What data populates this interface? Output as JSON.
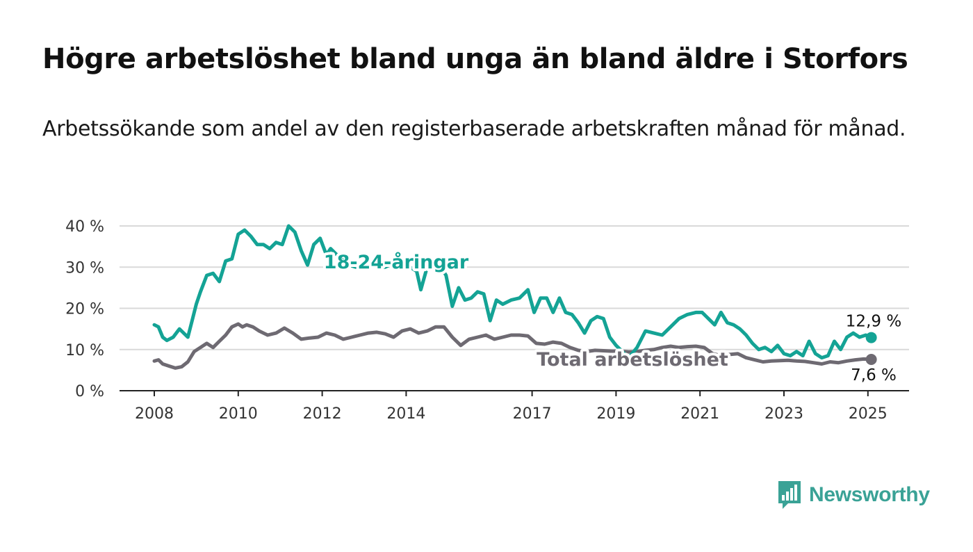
{
  "title": "Högre arbetslöshet bland unga än bland äldre i Storfors",
  "subtitle": "Arbetssökande som andel av den registerbaserade arbetskraften månad för månad.",
  "brand": {
    "name": "Newsworthy",
    "color": "#3aa296",
    "icon": "bar-chart-icon"
  },
  "chart_data": {
    "type": "line",
    "xlabel": "",
    "ylabel": "",
    "xlim": [
      2008,
      2025.15
    ],
    "ylim": [
      0,
      40
    ],
    "y_ticks": [
      0,
      10,
      20,
      30,
      40
    ],
    "y_tick_labels": [
      "0 %",
      "10 %",
      "20 %",
      "30 %",
      "40 %"
    ],
    "x_ticks": [
      2008,
      2010,
      2012,
      2014,
      2017,
      2019,
      2021,
      2023,
      2025
    ],
    "x_tick_labels": [
      "2008",
      "2010",
      "2012",
      "2014",
      "2017",
      "2019",
      "2021",
      "2023",
      "2025"
    ],
    "grid": "horizontal",
    "legend": "inline labels",
    "series": [
      {
        "name": "18-24-åringar",
        "color": "#14a395",
        "end_label": "12,9 %",
        "end_value": 12.9,
        "x": [
          2008.0,
          2008.1,
          2008.2,
          2008.3,
          2008.45,
          2008.6,
          2008.8,
          2008.9,
          2009.0,
          2009.1,
          2009.25,
          2009.4,
          2009.55,
          2009.7,
          2009.85,
          2010.0,
          2010.15,
          2010.3,
          2010.45,
          2010.6,
          2010.75,
          2010.9,
          2011.05,
          2011.2,
          2011.35,
          2011.5,
          2011.65,
          2011.8,
          2011.95,
          2012.1,
          2012.2,
          2012.35,
          2012.5,
          2012.65,
          2012.8,
          2012.95,
          2013.1,
          2013.3,
          2013.5,
          2013.7,
          2013.9,
          2014.1,
          2014.25,
          2014.35,
          2014.5,
          2014.65,
          2014.8,
          2014.95,
          2015.1,
          2015.25,
          2015.4,
          2015.55,
          2015.7,
          2015.85,
          2016.0,
          2016.15,
          2016.3,
          2016.5,
          2016.7,
          2016.9,
          2017.05,
          2017.2,
          2017.35,
          2017.5,
          2017.65,
          2017.8,
          2017.95,
          2018.1,
          2018.25,
          2018.4,
          2018.55,
          2018.7,
          2018.85,
          2019.0,
          2019.15,
          2019.3,
          2019.5,
          2019.7,
          2019.9,
          2020.1,
          2020.3,
          2020.5,
          2020.7,
          2020.9,
          2021.05,
          2021.2,
          2021.35,
          2021.5,
          2021.65,
          2021.8,
          2021.95,
          2022.1,
          2022.25,
          2022.4,
          2022.55,
          2022.7,
          2022.85,
          2023.0,
          2023.15,
          2023.3,
          2023.45,
          2023.6,
          2023.75,
          2023.9,
          2024.05,
          2024.2,
          2024.35,
          2024.5,
          2024.65,
          2024.8,
          2024.95,
          2025.08
        ],
        "values": [
          16,
          15.5,
          13,
          12.2,
          13,
          15,
          13,
          17,
          21,
          24,
          28,
          28.5,
          26.5,
          31.5,
          32,
          38,
          39,
          37.5,
          35.5,
          35.5,
          34.5,
          36,
          35.5,
          40,
          38.5,
          34,
          30.5,
          35.5,
          37,
          33,
          34.5,
          33,
          31.5,
          30.5,
          30,
          30.5,
          31,
          30,
          30,
          31,
          30.5,
          30,
          29,
          24.5,
          30,
          29.5,
          30.5,
          28,
          20.5,
          25,
          22,
          22.5,
          24,
          23.5,
          17,
          22,
          21,
          22,
          22.5,
          24.5,
          19,
          22.5,
          22.5,
          19,
          22.5,
          19,
          18.5,
          16.5,
          14,
          17,
          18,
          17.5,
          13,
          11,
          9.5,
          8,
          10.5,
          14.5,
          14,
          13.5,
          15.5,
          17.5,
          18.5,
          19,
          19,
          17.5,
          16,
          19,
          16.5,
          16,
          15,
          13.5,
          11.5,
          10,
          10.5,
          9.5,
          11,
          9,
          8.5,
          9.5,
          8.5,
          12,
          9,
          8,
          8.5,
          12,
          10,
          13,
          14,
          13,
          13.5,
          12.9
        ]
      },
      {
        "name": "Total arbetslöshet",
        "color": "#6e6a72",
        "end_label": "7,6 %",
        "end_value": 7.6,
        "x": [
          2008.0,
          2008.1,
          2008.2,
          2008.35,
          2008.5,
          2008.65,
          2008.8,
          2008.95,
          2009.1,
          2009.25,
          2009.4,
          2009.55,
          2009.7,
          2009.85,
          2010.0,
          2010.1,
          2010.2,
          2010.35,
          2010.5,
          2010.7,
          2010.9,
          2011.1,
          2011.3,
          2011.5,
          2011.7,
          2011.9,
          2012.1,
          2012.3,
          2012.5,
          2012.7,
          2012.9,
          2013.1,
          2013.3,
          2013.5,
          2013.7,
          2013.9,
          2014.1,
          2014.3,
          2014.5,
          2014.7,
          2014.9,
          2015.1,
          2015.3,
          2015.5,
          2015.7,
          2015.9,
          2016.1,
          2016.3,
          2016.5,
          2016.7,
          2016.9,
          2017.1,
          2017.3,
          2017.5,
          2017.7,
          2017.9,
          2018.1,
          2018.3,
          2018.5,
          2018.7,
          2018.9,
          2019.1,
          2019.3,
          2019.5,
          2019.7,
          2019.9,
          2020.1,
          2020.3,
          2020.5,
          2020.7,
          2020.9,
          2021.1,
          2021.3,
          2021.5,
          2021.7,
          2021.9,
          2022.1,
          2022.3,
          2022.5,
          2022.7,
          2022.9,
          2023.1,
          2023.3,
          2023.5,
          2023.7,
          2023.9,
          2024.1,
          2024.3,
          2024.5,
          2024.7,
          2024.9,
          2025.08
        ],
        "values": [
          7.2,
          7.5,
          6.5,
          6,
          5.5,
          5.8,
          7,
          9.5,
          10.5,
          11.5,
          10.5,
          12,
          13.5,
          15.5,
          16.2,
          15.5,
          16,
          15.5,
          14.5,
          13.5,
          14,
          15.2,
          14,
          12.5,
          12.8,
          13,
          14,
          13.5,
          12.5,
          13,
          13.5,
          14,
          14.2,
          13.8,
          13,
          14.5,
          15,
          14,
          14.5,
          15.5,
          15.5,
          13,
          11,
          12.5,
          13,
          13.5,
          12.5,
          13,
          13.5,
          13.5,
          13.3,
          11.5,
          11.3,
          11.8,
          11.5,
          10.5,
          9.8,
          9.5,
          9.8,
          9.7,
          9.6,
          9.6,
          9.4,
          9.5,
          9.8,
          10,
          10.5,
          10.8,
          10.5,
          10.7,
          10.8,
          10.5,
          9,
          8.5,
          8.8,
          9,
          8,
          7.5,
          7,
          7.2,
          7.3,
          7.4,
          7.2,
          7.1,
          6.8,
          6.5,
          7,
          6.8,
          7.2,
          7.5,
          7.7,
          7.6
        ]
      }
    ]
  }
}
